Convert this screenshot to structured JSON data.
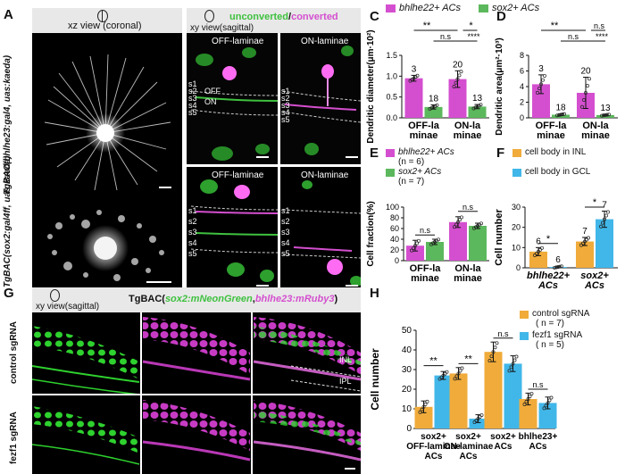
{
  "panels": {
    "A": {
      "letter": "A",
      "view": "xz view (coronal)",
      "row_labels": [
        "TgBAC(bhlhe23:gal4, uas:kaeda)",
        "TgBAC(sox2:gal4ff, uas:kaeda)"
      ]
    },
    "B": {
      "letter": "B",
      "view": "xy view(sagittal)",
      "title_a": "unconverted",
      "title_sep": "/",
      "title_b": "converted",
      "columns": [
        "OFF-laminae",
        "ON-laminae"
      ],
      "strata": [
        "s1",
        "s2",
        "s3",
        "s4",
        "s5"
      ],
      "off": "OFF",
      "on": "ON"
    },
    "C": {
      "letter": "C"
    },
    "D": {
      "letter": "D"
    },
    "E": {
      "letter": "E"
    },
    "F": {
      "letter": "F"
    },
    "G": {
      "letter": "G",
      "view": "xy view(sagittal)",
      "title_prefix": "TgBAC(",
      "title_a": "sox2:mNeonGreen",
      "title_sep": ",",
      "title_b": "bhlhe23:mRuby3",
      "title_suffix": ")",
      "rows": [
        "control sgRNA",
        "fezf1 sgRNA"
      ],
      "inl": "INL",
      "ipl": "IPL"
    },
    "H": {
      "letter": "H"
    }
  },
  "legend_top": {
    "a": "bhlhe22+ ACs",
    "b": "sox2+ ACs"
  },
  "colors": {
    "magenta": "#d44fcf",
    "green": "#5cb85c",
    "orange": "#f0ab3a",
    "blue": "#41b7e9",
    "ink": "#111111"
  },
  "chart_data": [
    {
      "id": "C",
      "type": "bar",
      "ylabel": "Dendritic diameter(μm·10²)",
      "categories": [
        "OFF-laminae",
        "ON-laminae"
      ],
      "ylim": [
        0,
        1.5
      ],
      "yticks": [
        0.0,
        0.5,
        1.0,
        1.5
      ],
      "series": [
        {
          "name": "bhlhe22+ ACs",
          "color": "#d44fcf",
          "values": [
            0.95,
            0.93
          ],
          "err": [
            0.07,
            0.2
          ],
          "n": [
            3,
            20
          ]
        },
        {
          "name": "sox2+ ACs",
          "color": "#5cb85c",
          "values": [
            0.26,
            0.27
          ],
          "err": [
            0.05,
            0.05
          ],
          "n": [
            18,
            13
          ]
        }
      ],
      "sig": [
        {
          "label": "**",
          "level": 1
        },
        {
          "label": "n.s",
          "level": 2
        },
        {
          "label": "*",
          "level": 1
        },
        {
          "label": "****",
          "level": 2
        }
      ]
    },
    {
      "id": "D",
      "type": "bar",
      "ylabel": "Dendritic area(μm²·10³)",
      "categories": [
        "OFF-laminae",
        "ON-laminae"
      ],
      "ylim": [
        0,
        8
      ],
      "yticks": [
        0,
        2,
        4,
        6,
        8
      ],
      "series": [
        {
          "name": "bhlhe22+ ACs",
          "color": "#d44fcf",
          "values": [
            4.3,
            3.2
          ],
          "err": [
            1.2,
            2.0
          ],
          "n": [
            3,
            20
          ]
        },
        {
          "name": "sox2+ ACs",
          "color": "#5cb85c",
          "values": [
            0.4,
            0.35
          ],
          "err": [
            0.1,
            0.08
          ],
          "n": [
            18,
            13
          ]
        }
      ],
      "sig": [
        {
          "label": "**",
          "level": 1
        },
        {
          "label": "n.s",
          "level": 2
        },
        {
          "label": "n.s",
          "level": 1
        },
        {
          "label": "****",
          "level": 2
        }
      ]
    },
    {
      "id": "E",
      "type": "bar",
      "ylabel": "Cell fraction(%)",
      "categories": [
        "OFF-laminae",
        "ON-laminae"
      ],
      "ylim": [
        0,
        100
      ],
      "yticks": [
        0,
        20,
        40,
        60,
        80,
        100
      ],
      "series": [
        {
          "name": "bhlhe22+ ACs",
          "n_label": "(n = 6)",
          "color": "#d44fcf",
          "values": [
            28,
            72
          ],
          "err": [
            10,
            10
          ]
        },
        {
          "name": "sox2+ ACs",
          "n_label": "(n = 7)",
          "color": "#5cb85c",
          "values": [
            35,
            65
          ],
          "err": [
            5,
            5
          ]
        }
      ],
      "sig": [
        {
          "label": "n.s"
        },
        {
          "label": "n.s"
        }
      ]
    },
    {
      "id": "F",
      "type": "bar",
      "ylabel": "Cell number",
      "categories": [
        "bhlhe22+ ACs",
        "sox2+ ACs"
      ],
      "ylim": [
        0,
        30
      ],
      "yticks": [
        0,
        10,
        20,
        30
      ],
      "series": [
        {
          "name": "cell body in INL",
          "color": "#f0ab3a",
          "values": [
            8,
            13
          ],
          "err": [
            2,
            2
          ],
          "n": [
            6,
            7
          ]
        },
        {
          "name": "cell body in GCL",
          "color": "#41b7e9",
          "values": [
            0.4,
            24
          ],
          "err": [
            0.4,
            4
          ],
          "n": [
            6,
            7
          ]
        }
      ],
      "sig": [
        {
          "label": "*"
        },
        {
          "label": "*"
        }
      ]
    },
    {
      "id": "H",
      "type": "bar",
      "ylabel": "Cell number",
      "categories": [
        "sox2+ OFF-laminae ACs",
        "sox2+ ON-laminae ACs",
        "sox2+ ACs",
        "bhlhe23+ ACs"
      ],
      "ylim": [
        0,
        50
      ],
      "yticks": [
        0,
        10,
        20,
        30,
        40,
        50
      ],
      "series": [
        {
          "name": "control sgRNA",
          "n_label": "( n = 7)",
          "color": "#f0ab3a",
          "values": [
            11,
            28,
            39,
            15
          ],
          "err": [
            3,
            3,
            5,
            3
          ]
        },
        {
          "name": "fezf1 sgRNA",
          "n_label": "( n = 5)",
          "color": "#41b7e9",
          "values": [
            27,
            5,
            33,
            13
          ],
          "err": [
            2,
            2,
            4,
            3
          ]
        }
      ],
      "sig": [
        {
          "label": "**"
        },
        {
          "label": "**"
        },
        {
          "label": "n.s"
        },
        {
          "label": "n.s"
        }
      ]
    }
  ]
}
